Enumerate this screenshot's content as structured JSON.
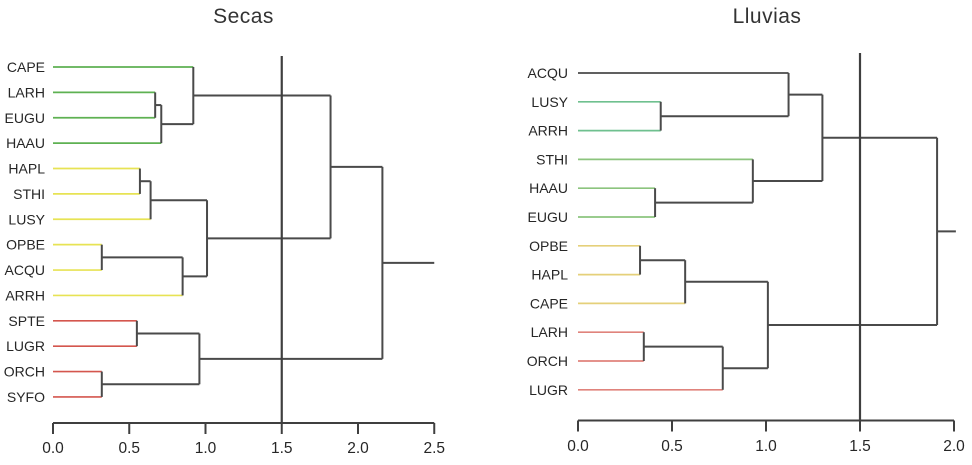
{
  "figure": {
    "background": "#ffffff"
  },
  "chart_data": [
    {
      "type": "dendrogram",
      "title": "Secas",
      "orientation": "horizontal-leaves-left",
      "axis": {
        "position": "bottom",
        "range": [
          0.0,
          2.5
        ],
        "ticks": [
          0.0,
          0.5,
          1.0,
          1.5,
          2.0,
          2.5
        ],
        "tick_labels": [
          "0.0",
          "0.5",
          "1.0",
          "1.5",
          "2.0",
          "2.5"
        ]
      },
      "cutoff_line_at": 1.5,
      "root_extends_to": 2.5,
      "colors": {
        "link": "#4a4a4a",
        "axis": "#3f3f3f",
        "cutoff": "#3f3f3f",
        "label_text": "#262626",
        "clusters": {
          "green": "#5eb152",
          "yellow": "#e7e354",
          "red": "#d4564e"
        }
      },
      "leaves": [
        {
          "label": "CAPE",
          "cluster": "green"
        },
        {
          "label": "LARH",
          "cluster": "green"
        },
        {
          "label": "EUGU",
          "cluster": "green"
        },
        {
          "label": "HAAU",
          "cluster": "green"
        },
        {
          "label": "HAPL",
          "cluster": "yellow"
        },
        {
          "label": "STHI",
          "cluster": "yellow"
        },
        {
          "label": "LUSY",
          "cluster": "yellow"
        },
        {
          "label": "OPBE",
          "cluster": "yellow"
        },
        {
          "label": "ACQU",
          "cluster": "yellow"
        },
        {
          "label": "ARRH",
          "cluster": "yellow"
        },
        {
          "label": "SPTE",
          "cluster": "red"
        },
        {
          "label": "LUGR",
          "cluster": "red"
        },
        {
          "label": "ORCH",
          "cluster": "red"
        },
        {
          "label": "SYFO",
          "cluster": "red"
        }
      ],
      "merges": [
        {
          "a": "LARH",
          "b": "EUGU",
          "height": 0.67
        },
        {
          "a": "#0",
          "b": "HAAU",
          "height": 0.71
        },
        {
          "a": "CAPE",
          "b": "#1",
          "height": 0.92
        },
        {
          "a": "HAPL",
          "b": "STHI",
          "height": 0.57
        },
        {
          "a": "#3",
          "b": "LUSY",
          "height": 0.64
        },
        {
          "a": "OPBE",
          "b": "ACQU",
          "height": 0.32
        },
        {
          "a": "#5",
          "b": "ARRH",
          "height": 0.85
        },
        {
          "a": "#4",
          "b": "#6",
          "height": 1.01
        },
        {
          "a": "#2",
          "b": "#7",
          "height": 1.82
        },
        {
          "a": "SPTE",
          "b": "LUGR",
          "height": 0.55
        },
        {
          "a": "ORCH",
          "b": "SYFO",
          "height": 0.32
        },
        {
          "a": "#9",
          "b": "#10",
          "height": 0.96
        },
        {
          "a": "#8",
          "b": "#11",
          "height": 2.16
        }
      ]
    },
    {
      "type": "dendrogram",
      "title": "Lluvias",
      "orientation": "horizontal-leaves-left",
      "axis": {
        "position": "bottom",
        "range": [
          0.0,
          2.0
        ],
        "ticks": [
          0.0,
          0.5,
          1.0,
          1.5,
          2.0
        ],
        "tick_labels": [
          "0.0",
          "0.5",
          "1.0",
          "1.5",
          "2.0"
        ]
      },
      "cutoff_line_at": 1.5,
      "root_extends_to": 2.01,
      "colors": {
        "link": "#4a4a4a",
        "axis": "#3f3f3f",
        "cutoff": "#3f3f3f",
        "label_text": "#262626",
        "clusters": {
          "teal": "#6fc08f",
          "green": "#8cc47e",
          "gold": "#e5d07a",
          "red": "#e0837c"
        }
      },
      "leaves": [
        {
          "label": "ACQU",
          "cluster": null
        },
        {
          "label": "LUSY",
          "cluster": "teal"
        },
        {
          "label": "ARRH",
          "cluster": "teal"
        },
        {
          "label": "STHI",
          "cluster": "green"
        },
        {
          "label": "HAAU",
          "cluster": "green"
        },
        {
          "label": "EUGU",
          "cluster": "green"
        },
        {
          "label": "OPBE",
          "cluster": "gold"
        },
        {
          "label": "HAPL",
          "cluster": "gold"
        },
        {
          "label": "CAPE",
          "cluster": "gold"
        },
        {
          "label": "LARH",
          "cluster": "red"
        },
        {
          "label": "ORCH",
          "cluster": "red"
        },
        {
          "label": "LUGR",
          "cluster": "red"
        }
      ],
      "merges": [
        {
          "a": "LUSY",
          "b": "ARRH",
          "height": 0.44
        },
        {
          "a": "ACQU",
          "b": "#0",
          "height": 1.12
        },
        {
          "a": "HAAU",
          "b": "EUGU",
          "height": 0.41
        },
        {
          "a": "STHI",
          "b": "#2",
          "height": 0.93
        },
        {
          "a": "#1",
          "b": "#3",
          "height": 1.3
        },
        {
          "a": "OPBE",
          "b": "HAPL",
          "height": 0.33
        },
        {
          "a": "#5",
          "b": "CAPE",
          "height": 0.57
        },
        {
          "a": "LARH",
          "b": "ORCH",
          "height": 0.35
        },
        {
          "a": "#7",
          "b": "LUGR",
          "height": 0.77
        },
        {
          "a": "#6",
          "b": "#8",
          "height": 1.01
        },
        {
          "a": "#4",
          "b": "#9",
          "height": 1.91
        }
      ]
    }
  ]
}
